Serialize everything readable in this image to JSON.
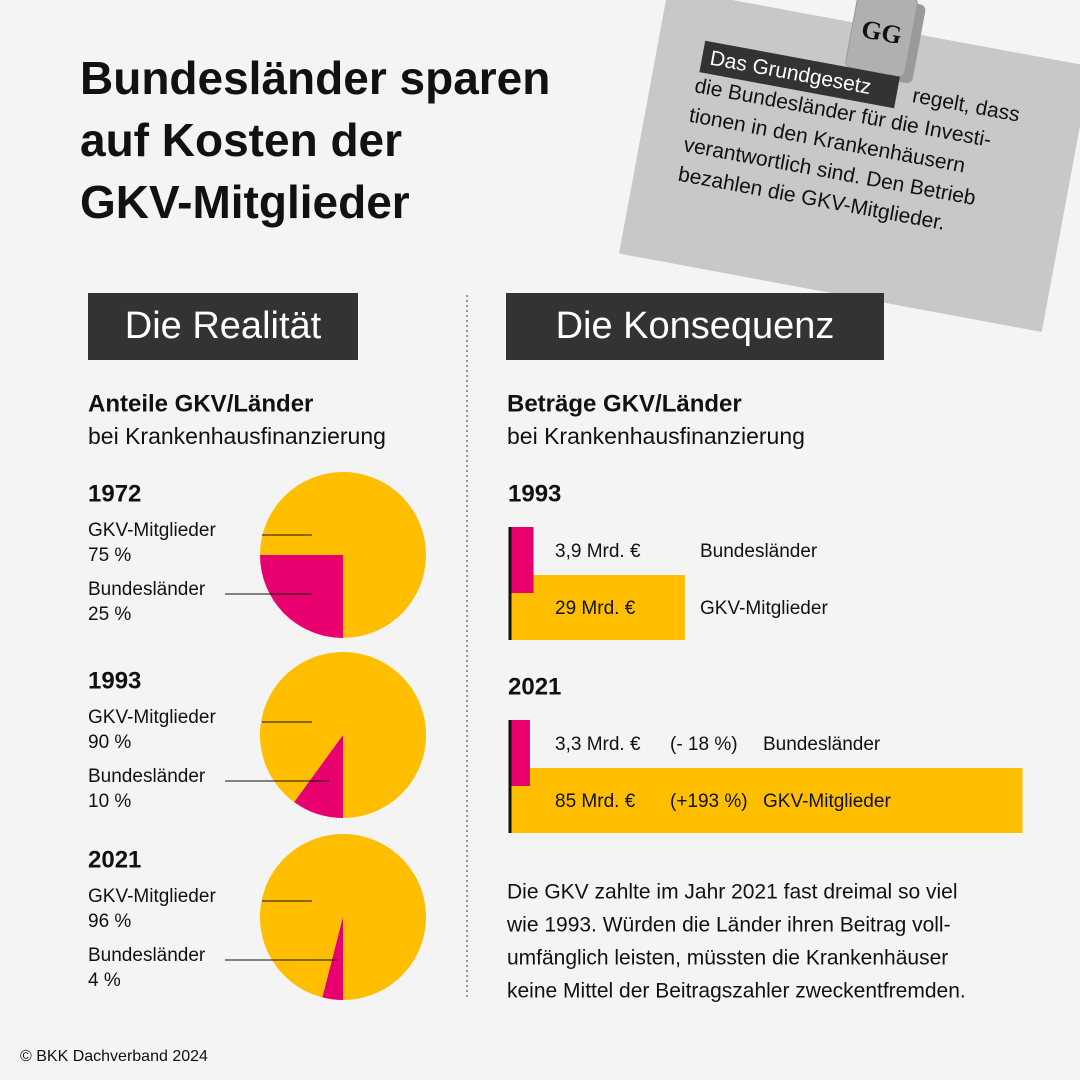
{
  "title_lines": [
    "Bundesländer sparen",
    "auf Kosten der",
    "GKV-Mitglieder"
  ],
  "note": {
    "icon_label": "GG",
    "highlight": "Das Grundgesetz",
    "first_line_rest": "regelt, dass",
    "lines": [
      "die Bundesländer für die Investi-",
      "tionen in den Krankenhäusern",
      "verantwortlich sind. Den Betrieb",
      "bezahlen die GKV-Mitglieder."
    ]
  },
  "left_heading": "Die Realität",
  "right_heading": "Die Konsequenz",
  "left_subtitle": [
    "Anteile GKV/Länder",
    "bei Krankenhausfinanzierung"
  ],
  "right_subtitle": [
    "Beträge GKV/Länder",
    "bei Krankenhausfinanzierung"
  ],
  "conclusion_lines": [
    "Die GKV zahlte im Jahr 2021 fast dreimal so viel",
    "wie 1993. Würden die Länder ihren Beitrag voll-",
    "umfänglich leisten, müssten die Krankenhäuser",
    "keine Mittel der Beitragszahler zweckentfremden."
  ],
  "footer": "© BKK Dachverband 2024",
  "chart_data": [
    {
      "type": "pie",
      "title": "1972",
      "categories": [
        "GKV-Mitglieder",
        "Bundesländer"
      ],
      "values": [
        75,
        25
      ],
      "value_labels": [
        "75 %",
        "25 %"
      ],
      "colors": [
        "#ffbe00",
        "#e8006e"
      ]
    },
    {
      "type": "pie",
      "title": "1993",
      "categories": [
        "GKV-Mitglieder",
        "Bundesländer"
      ],
      "values": [
        90,
        10
      ],
      "value_labels": [
        "90 %",
        "10 %"
      ],
      "colors": [
        "#ffbe00",
        "#e8006e"
      ]
    },
    {
      "type": "pie",
      "title": "2021",
      "categories": [
        "GKV-Mitglieder",
        "Bundesländer"
      ],
      "values": [
        96,
        4
      ],
      "value_labels": [
        "96 %",
        "4 %"
      ],
      "colors": [
        "#ffbe00",
        "#e8006e"
      ]
    },
    {
      "type": "bar",
      "title": "1993",
      "categories": [
        "Bundesländer",
        "GKV-Mitglieder"
      ],
      "values": [
        3.9,
        29
      ],
      "value_labels": [
        "3,9 Mrd. €",
        "29 Mrd. €"
      ],
      "colors": [
        "#e8006e",
        "#ffbe00"
      ]
    },
    {
      "type": "bar",
      "title": "2021",
      "categories": [
        "Bundesländer",
        "GKV-Mitglieder"
      ],
      "values": [
        3.3,
        85
      ],
      "value_labels": [
        "3,3 Mrd. €",
        "85 Mrd. €"
      ],
      "changes": [
        -18,
        193
      ],
      "change_labels": [
        "(- 18 %)",
        "(+193 %)"
      ],
      "colors": [
        "#e8006e",
        "#ffbe00"
      ]
    }
  ]
}
